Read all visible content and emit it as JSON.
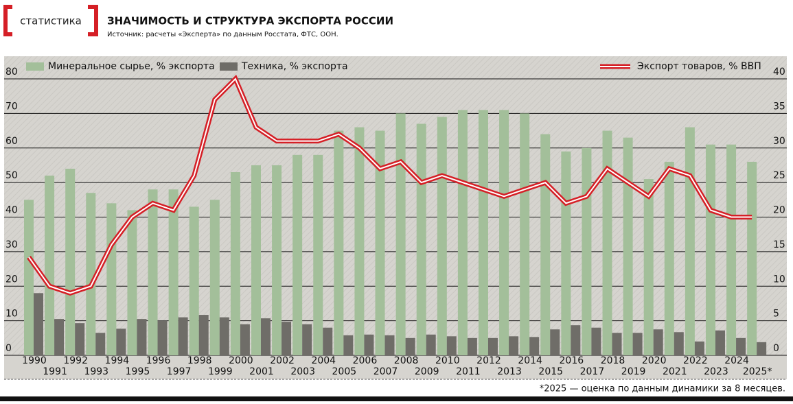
{
  "header": {
    "logo": "статистика",
    "title": "ЗНАЧИМОСТЬ И СТРУКТУРА ЭКСПОРТА РОССИИ",
    "source": "Источник: расчеты «Эксперта» по данным Росстата, ФТС, ООН."
  },
  "chart_data": {
    "type": "bar",
    "categories": [
      "1990",
      "1991",
      "1992",
      "1993",
      "1994",
      "1995",
      "1996",
      "1997",
      "1998",
      "1999",
      "2000",
      "2001",
      "2002",
      "2003",
      "2004",
      "2005",
      "2006",
      "2007",
      "2008",
      "2009",
      "2010",
      "2011",
      "2012",
      "2013",
      "2014",
      "2015",
      "2016",
      "2017",
      "2018",
      "2019",
      "2020",
      "2021",
      "2022",
      "2023",
      "2024",
      "2025*"
    ],
    "series": [
      {
        "name": "Минеральное сырье, % экспорта",
        "type": "bar",
        "color": "#a3bf9a",
        "values": [
          45,
          52,
          54,
          47,
          44,
          42,
          48,
          48,
          43,
          45,
          53,
          55,
          55,
          58,
          58,
          65,
          66,
          65,
          70,
          67,
          69,
          71,
          71,
          71,
          70,
          64,
          59,
          60,
          65,
          63,
          51,
          56,
          66,
          61,
          61,
          56
        ]
      },
      {
        "name": "Техника, % экспорта",
        "type": "bar",
        "color": "#6f6d68",
        "values": [
          18,
          10.5,
          9.3,
          6.5,
          7.7,
          10.5,
          10,
          11,
          11.7,
          11,
          9,
          10.7,
          9.7,
          9,
          8,
          5.8,
          6,
          5.8,
          5,
          6,
          5.5,
          5,
          5,
          5.5,
          5.3,
          7.5,
          8.7,
          8,
          6.5,
          6.5,
          7.5,
          6.7,
          4,
          7.2,
          5,
          3.8
        ]
      },
      {
        "name": "Экспорт товаров, % ВВП",
        "type": "line",
        "axis": "y2",
        "color": "#d51f26",
        "values": [
          14.2,
          10,
          9,
          10,
          16,
          20,
          22,
          21,
          26,
          37,
          40,
          33,
          31,
          31,
          31,
          32,
          30,
          27,
          28,
          25,
          26,
          25,
          24,
          23,
          24,
          25,
          22,
          23,
          27,
          25,
          23,
          27,
          26,
          21,
          20,
          20
        ]
      }
    ],
    "ylim": [
      0,
      80
    ],
    "yticks": [
      0,
      10,
      20,
      30,
      40,
      50,
      60,
      70,
      80
    ],
    "y2lim": [
      0,
      40
    ],
    "y2ticks": [
      0,
      5,
      10,
      15,
      20,
      25,
      30,
      35,
      40
    ],
    "grid": true,
    "legend": "top",
    "footnote": "*2025 — оценка по данным динамики за 8 месяцев."
  }
}
